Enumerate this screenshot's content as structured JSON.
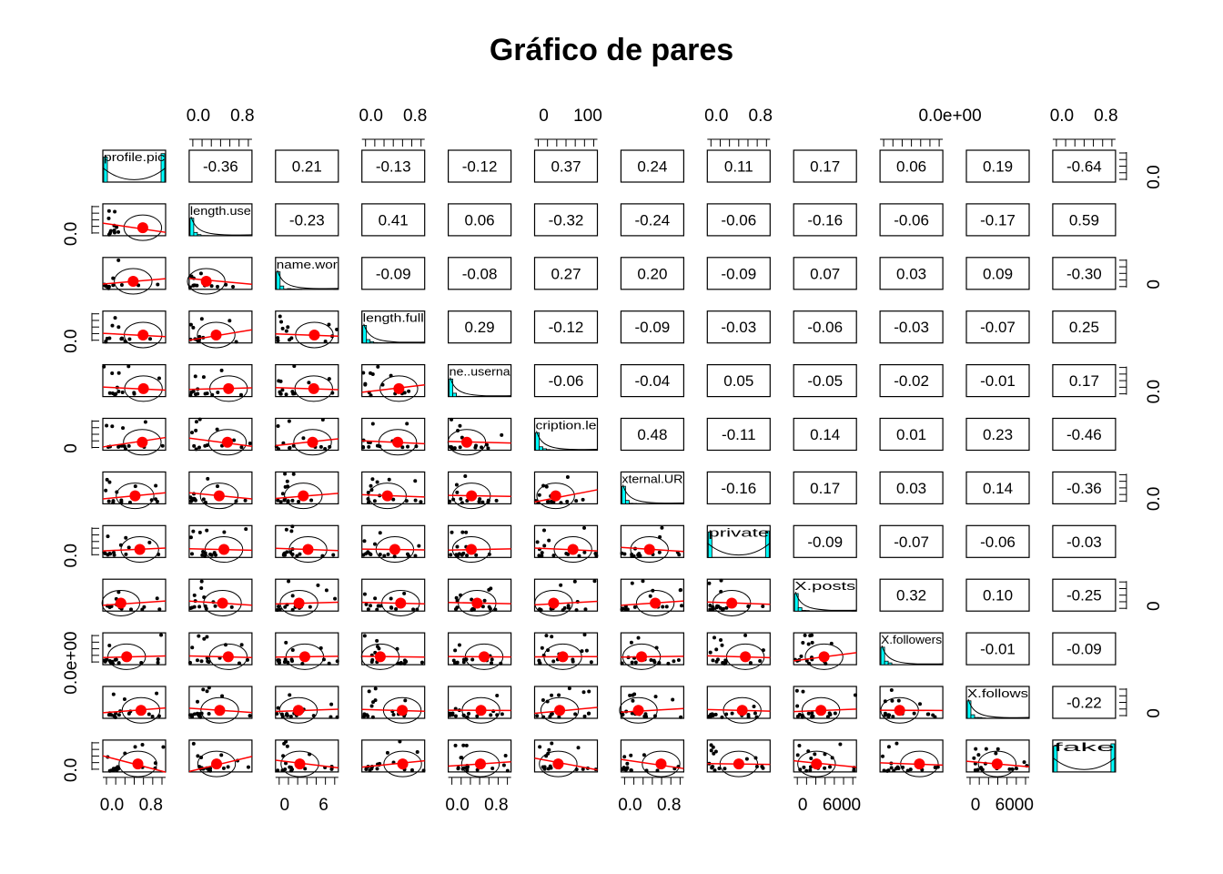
{
  "chart_data": {
    "type": "scatter",
    "subtype": "pairs-panels",
    "title": "Gráfico de pares",
    "variables": [
      "profile.pic",
      "length.use",
      "name.wor",
      "length.full",
      "ne..userna",
      "cription.le",
      "xternal.UR",
      "private",
      "X.posts",
      "X.followers",
      "X.follows",
      "fake"
    ],
    "correlations": [
      [
        null,
        -0.36,
        0.21,
        -0.13,
        -0.12,
        0.37,
        0.24,
        0.11,
        0.17,
        0.06,
        0.19,
        -0.64
      ],
      [
        null,
        null,
        -0.23,
        0.41,
        0.06,
        -0.32,
        -0.24,
        -0.06,
        -0.16,
        -0.06,
        -0.17,
        0.59
      ],
      [
        null,
        null,
        null,
        -0.09,
        -0.08,
        0.27,
        0.2,
        -0.09,
        0.07,
        0.03,
        0.09,
        -0.3
      ],
      [
        null,
        null,
        null,
        null,
        0.29,
        -0.12,
        -0.09,
        -0.03,
        -0.06,
        -0.03,
        -0.07,
        0.25
      ],
      [
        null,
        null,
        null,
        null,
        null,
        -0.06,
        -0.04,
        0.05,
        -0.05,
        -0.02,
        -0.01,
        0.17
      ],
      [
        null,
        null,
        null,
        null,
        null,
        null,
        0.48,
        -0.11,
        0.14,
        0.01,
        0.23,
        -0.46
      ],
      [
        null,
        null,
        null,
        null,
        null,
        null,
        null,
        -0.16,
        0.17,
        0.03,
        0.14,
        -0.36
      ],
      [
        null,
        null,
        null,
        null,
        null,
        null,
        null,
        null,
        -0.09,
        -0.07,
        -0.06,
        -0.03
      ],
      [
        null,
        null,
        null,
        null,
        null,
        null,
        null,
        null,
        null,
        0.32,
        0.1,
        -0.25
      ],
      [
        null,
        null,
        null,
        null,
        null,
        null,
        null,
        null,
        null,
        null,
        -0.01,
        -0.09
      ],
      [
        null,
        null,
        null,
        null,
        null,
        null,
        null,
        null,
        null,
        null,
        null,
        -0.22
      ],
      [
        null,
        null,
        null,
        null,
        null,
        null,
        null,
        null,
        null,
        null,
        null,
        null
      ]
    ],
    "correlation_labels": [
      [
        null,
        "-0.36",
        "0.21",
        "-0.13",
        "-0.12",
        "0.37",
        "0.24",
        "0.11",
        "0.17",
        "0.06",
        "0.19",
        "-0.64"
      ],
      [
        null,
        null,
        "-0.23",
        "0.41",
        "0.06",
        "-0.32",
        "-0.24",
        "-0.06",
        "-0.16",
        "-0.06",
        "-0.17",
        "0.59"
      ],
      [
        null,
        null,
        null,
        "-0.09",
        "-0.08",
        "0.27",
        "0.20",
        "-0.09",
        "0.07",
        "0.03",
        "0.09",
        "-0.30"
      ],
      [
        null,
        null,
        null,
        null,
        "0.29",
        "-0.12",
        "-0.09",
        "-0.03",
        "-0.06",
        "-0.03",
        "-0.07",
        "0.25"
      ],
      [
        null,
        null,
        null,
        null,
        null,
        "-0.06",
        "-0.04",
        "0.05",
        "-0.05",
        "-0.02",
        "-0.01",
        "0.17"
      ],
      [
        null,
        null,
        null,
        null,
        null,
        null,
        "0.48",
        "-0.11",
        "0.14",
        "0.01",
        "0.23",
        "-0.46"
      ],
      [
        null,
        null,
        null,
        null,
        null,
        null,
        null,
        "-0.16",
        "0.17",
        "0.03",
        "0.14",
        "-0.36"
      ],
      [
        null,
        null,
        null,
        null,
        null,
        null,
        null,
        null,
        "-0.09",
        "-0.07",
        "-0.06",
        "-0.03"
      ],
      [
        null,
        null,
        null,
        null,
        null,
        null,
        null,
        null,
        null,
        "0.32",
        "0.10",
        "-0.25"
      ],
      [
        null,
        null,
        null,
        null,
        null,
        null,
        null,
        null,
        null,
        null,
        "-0.01",
        "-0.09"
      ],
      [
        null,
        null,
        null,
        null,
        null,
        null,
        null,
        null,
        null,
        null,
        null,
        "-0.22"
      ],
      [
        null,
        null,
        null,
        null,
        null,
        null,
        null,
        null,
        null,
        null,
        null,
        null
      ]
    ],
    "axis_labels": {
      "top": [
        {
          "col": 1,
          "labels": [
            "0.0",
            "0.8"
          ]
        },
        {
          "col": 3,
          "labels": [
            "0.0",
            "0.8"
          ]
        },
        {
          "col": 5,
          "labels": [
            "0",
            "100"
          ]
        },
        {
          "col": 7,
          "labels": [
            "0.0",
            "0.8"
          ]
        },
        {
          "col": 9,
          "labels": [
            "0.0e+00"
          ]
        },
        {
          "col": 11,
          "labels": [
            "0.0",
            "0.8"
          ]
        }
      ],
      "bottom": [
        {
          "col": 0,
          "labels": [
            "0.0",
            "0.8"
          ]
        },
        {
          "col": 2,
          "labels": [
            "0",
            "6"
          ]
        },
        {
          "col": 4,
          "labels": [
            "0.0",
            "0.8"
          ]
        },
        {
          "col": 6,
          "labels": [
            "0.0",
            "0.8"
          ]
        },
        {
          "col": 8,
          "labels": [
            "0",
            "6000"
          ]
        },
        {
          "col": 10,
          "labels": [
            "0",
            "6000"
          ]
        }
      ],
      "left": [
        {
          "row": 1,
          "label": "0.0"
        },
        {
          "row": 3,
          "label": "0.0"
        },
        {
          "row": 5,
          "label": "0"
        },
        {
          "row": 7,
          "label": "0.0"
        },
        {
          "row": 9,
          "label": "0.0e+00"
        },
        {
          "row": 11,
          "label": "0.0"
        }
      ],
      "right": [
        {
          "row": 0,
          "label": "0.0"
        },
        {
          "row": 2,
          "label": "0"
        },
        {
          "row": 4,
          "label": "0.0"
        },
        {
          "row": 6,
          "label": "0.0"
        },
        {
          "row": 8,
          "label": "0"
        },
        {
          "row": 10,
          "label": "0"
        }
      ]
    },
    "colors": {
      "frame": "#000000",
      "histogram": "#00ffff",
      "smooth": "#ff0000",
      "points": "#000000",
      "mean_dot": "#ff0000"
    }
  }
}
